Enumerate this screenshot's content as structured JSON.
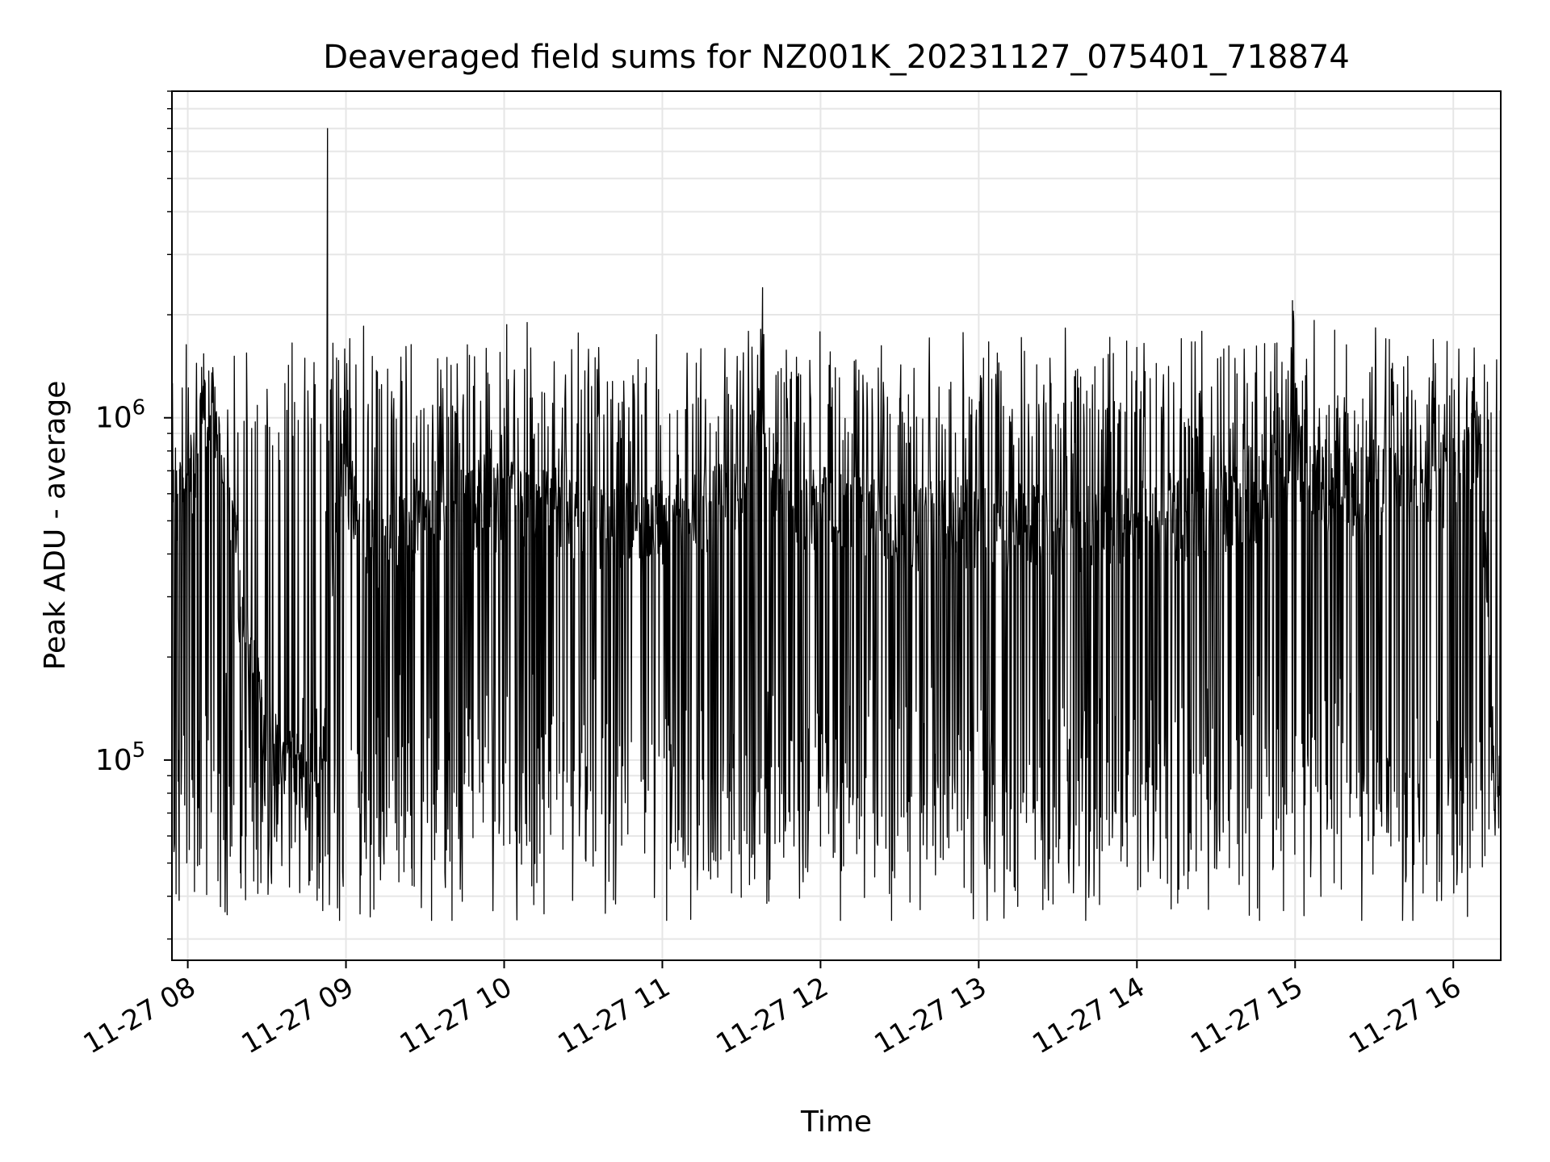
{
  "chart_data": {
    "type": "line",
    "title": "Deaveraged field sums for NZ001K_20231127_075401_718874",
    "xlabel": "Time",
    "ylabel": "Peak ADU - average",
    "x_type": "time",
    "xlim": [
      "2023-11-27 07:54",
      "2023-11-27 16:18"
    ],
    "yscale": "log",
    "ylim": [
      26000,
      9000000
    ],
    "grid": true,
    "x_ticks": [
      {
        "value": "2023-11-27 08:00",
        "label": "11-27 08"
      },
      {
        "value": "2023-11-27 09:00",
        "label": "11-27 09"
      },
      {
        "value": "2023-11-27 10:00",
        "label": "11-27 10"
      },
      {
        "value": "2023-11-27 11:00",
        "label": "11-27 11"
      },
      {
        "value": "2023-11-27 12:00",
        "label": "11-27 12"
      },
      {
        "value": "2023-11-27 13:00",
        "label": "11-27 13"
      },
      {
        "value": "2023-11-27 14:00",
        "label": "11-27 14"
      },
      {
        "value": "2023-11-27 15:00",
        "label": "11-27 15"
      },
      {
        "value": "2023-11-27 16:00",
        "label": "11-27 16"
      }
    ],
    "y_ticks": [
      {
        "value": 100000,
        "base": "10",
        "exp": "5"
      },
      {
        "value": 1000000,
        "base": "10",
        "exp": "6"
      }
    ],
    "series": [
      {
        "color": "#000000",
        "x": [
          "2023-11-27 07:54",
          "2023-11-27 07:57",
          "2023-11-27 08:00",
          "2023-11-27 08:03",
          "2023-11-27 08:06",
          "2023-11-27 08:09",
          "2023-11-27 08:12",
          "2023-11-27 08:15",
          "2023-11-27 08:18",
          "2023-11-27 08:20",
          "2023-11-27 08:22",
          "2023-11-27 08:25",
          "2023-11-27 08:28",
          "2023-11-27 08:31",
          "2023-11-27 08:34",
          "2023-11-27 08:37",
          "2023-11-27 08:40",
          "2023-11-27 08:43",
          "2023-11-27 08:46",
          "2023-11-27 08:49",
          "2023-11-27 08:52",
          "2023-11-27 08:53",
          "2023-11-27 08:54",
          "2023-11-27 08:57",
          "2023-11-27 09:00",
          "2023-11-27 09:05",
          "2023-11-27 09:10",
          "2023-11-27 09:15",
          "2023-11-27 09:20",
          "2023-11-27 09:25",
          "2023-11-27 09:30",
          "2023-11-27 09:35",
          "2023-11-27 09:40",
          "2023-11-27 09:45",
          "2023-11-27 09:50",
          "2023-11-27 09:55",
          "2023-11-27 10:00",
          "2023-11-27 10:10",
          "2023-11-27 10:20",
          "2023-11-27 10:30",
          "2023-11-27 10:40",
          "2023-11-27 10:45",
          "2023-11-27 10:50",
          "2023-11-27 11:00",
          "2023-11-27 11:10",
          "2023-11-27 11:20",
          "2023-11-27 11:30",
          "2023-11-27 11:37",
          "2023-11-27 11:38",
          "2023-11-27 11:39",
          "2023-11-27 11:45",
          "2023-11-27 12:00",
          "2023-11-27 12:15",
          "2023-11-27 12:30",
          "2023-11-27 12:45",
          "2023-11-27 13:00",
          "2023-11-27 13:15",
          "2023-11-27 13:30",
          "2023-11-27 13:45",
          "2023-11-27 14:00",
          "2023-11-27 14:15",
          "2023-11-27 14:30",
          "2023-11-27 14:45",
          "2023-11-27 14:58",
          "2023-11-27 14:59",
          "2023-11-27 15:00",
          "2023-11-27 15:15",
          "2023-11-27 15:30",
          "2023-11-27 15:45",
          "2023-11-27 16:00",
          "2023-11-27 16:07",
          "2023-11-27 16:10",
          "2023-11-27 16:12",
          "2023-11-27 16:14",
          "2023-11-27 16:16",
          "2023-11-27 16:18"
        ],
        "y": [
          550000,
          620000,
          680000,
          800000,
          1000000,
          1150000,
          950000,
          700000,
          480000,
          280000,
          220000,
          180000,
          140000,
          120000,
          110000,
          100000,
          95000,
          90000,
          85000,
          80000,
          120000,
          7000000,
          300000,
          600000,
          700000,
          500000,
          450000,
          400000,
          450000,
          500000,
          550000,
          600000,
          650000,
          600000,
          580000,
          550000,
          600000,
          580000,
          550000,
          530000,
          500000,
          520000,
          480000,
          520000,
          540000,
          560000,
          580000,
          1200000,
          2400000,
          900000,
          600000,
          560000,
          520000,
          500000,
          520000,
          510000,
          500000,
          490000,
          500000,
          520000,
          540000,
          560000,
          600000,
          700000,
          2200000,
          800000,
          620000,
          640000,
          660000,
          650000,
          800000,
          900000,
          400000,
          180000,
          80000,
          90000
        ],
        "noise": {
          "lows": [
            55000,
            70000,
            90000,
            120000,
            45000,
            65000,
            150000,
            80000,
            38000,
            60000,
            50000,
            110000,
            75000,
            95000,
            48000,
            42000,
            130000,
            62000,
            85000,
            100000
          ],
          "highs": [
            1300000,
            1100000,
            1500000,
            900000,
            1200000,
            1000000,
            1350000,
            950000,
            1600000,
            1050000,
            1250000,
            850000,
            1400000,
            980000,
            1150000,
            1700000,
            1080000,
            920000,
            1450000,
            1020000
          ]
        }
      }
    ]
  }
}
